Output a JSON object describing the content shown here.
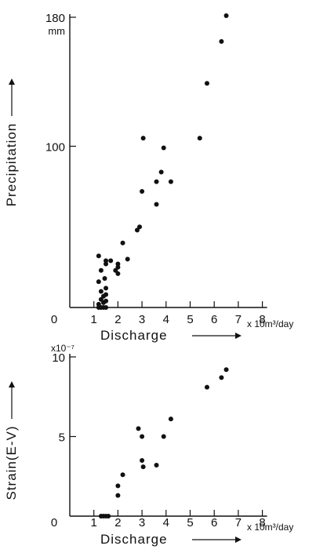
{
  "chart_data": [
    {
      "type": "scatter",
      "ylabel": "Precipitation",
      "y_unit": "mm",
      "xlabel": "Discharge",
      "x_unit": "x 10m³/day",
      "xlim": [
        0,
        8
      ],
      "ylim": [
        0,
        180
      ],
      "x_ticks": [
        "0",
        "1",
        "2",
        "3",
        "4",
        "5",
        "6",
        "7",
        "8"
      ],
      "y_ticks": [
        "100",
        "180"
      ],
      "grid": false,
      "points": [
        [
          1.2,
          0
        ],
        [
          1.3,
          0
        ],
        [
          1.4,
          0
        ],
        [
          1.5,
          0
        ],
        [
          1.2,
          2
        ],
        [
          1.4,
          3
        ],
        [
          1.5,
          4
        ],
        [
          1.3,
          5
        ],
        [
          1.4,
          7
        ],
        [
          1.5,
          8
        ],
        [
          1.3,
          10
        ],
        [
          1.5,
          12
        ],
        [
          1.2,
          16
        ],
        [
          1.45,
          18
        ],
        [
          1.3,
          23
        ],
        [
          1.5,
          27
        ],
        [
          1.9,
          23
        ],
        [
          2.0,
          21
        ],
        [
          2.0,
          25
        ],
        [
          1.7,
          29
        ],
        [
          1.5,
          29
        ],
        [
          1.2,
          32
        ],
        [
          2.0,
          27
        ],
        [
          2.4,
          30
        ],
        [
          2.2,
          40
        ],
        [
          2.8,
          48
        ],
        [
          2.9,
          50
        ],
        [
          3.0,
          72
        ],
        [
          3.6,
          64
        ],
        [
          3.6,
          78
        ],
        [
          3.8,
          84
        ],
        [
          3.9,
          99
        ],
        [
          4.2,
          78
        ],
        [
          3.05,
          105
        ],
        [
          5.4,
          105
        ],
        [
          5.7,
          139
        ],
        [
          6.3,
          165
        ],
        [
          6.5,
          181
        ]
      ]
    },
    {
      "type": "scatter",
      "ylabel": "Strain(E-V)",
      "y_unit": "x10⁻⁷",
      "xlabel": "Discharge",
      "x_unit": "x 10m³/day",
      "xlim": [
        0,
        8
      ],
      "ylim": [
        0,
        10
      ],
      "x_ticks": [
        "0",
        "1",
        "2",
        "3",
        "4",
        "5",
        "6",
        "7",
        "8"
      ],
      "y_ticks": [
        "5",
        "10"
      ],
      "grid": false,
      "points": [
        [
          1.3,
          0
        ],
        [
          1.4,
          0
        ],
        [
          1.5,
          0
        ],
        [
          1.6,
          0
        ],
        [
          2.0,
          1.3
        ],
        [
          2.0,
          1.9
        ],
        [
          2.2,
          2.6
        ],
        [
          2.85,
          5.5
        ],
        [
          3.0,
          5.0
        ],
        [
          3.0,
          3.5
        ],
        [
          3.05,
          3.1
        ],
        [
          3.6,
          3.2
        ],
        [
          3.9,
          5.0
        ],
        [
          4.2,
          6.1
        ],
        [
          5.7,
          8.1
        ],
        [
          6.3,
          8.7
        ],
        [
          6.5,
          9.2
        ]
      ]
    }
  ]
}
